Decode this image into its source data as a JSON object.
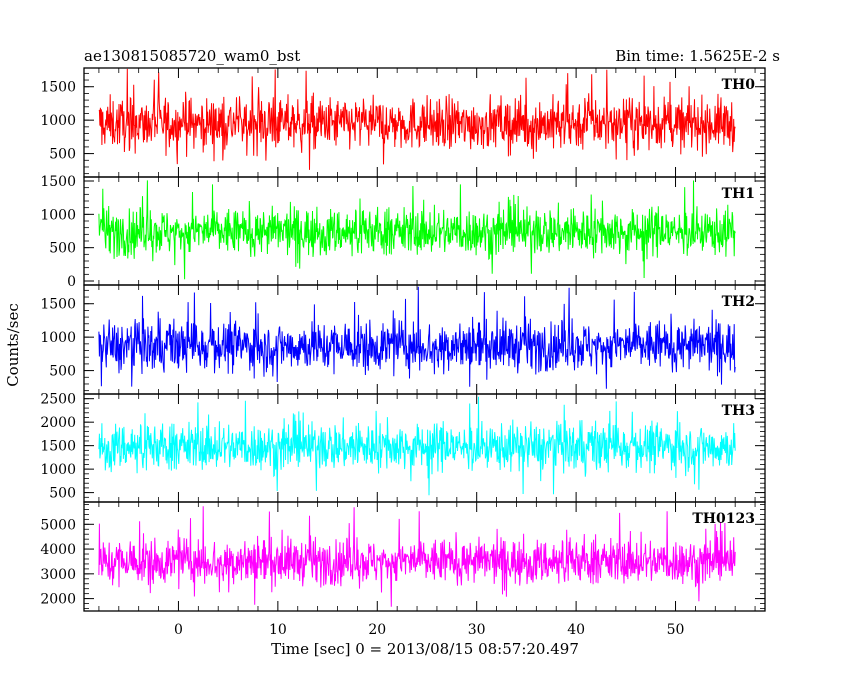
{
  "header": {
    "title_left": "ae130815085720_wam0_bst",
    "title_right": "Bin time: 1.5625E-2 s"
  },
  "chart_data": {
    "type": "line",
    "xlabel": "Time [sec] 0 = 2013/08/15 08:57:20.497",
    "ylabel": "Counts/sec",
    "xlim": [
      -9.5,
      59
    ],
    "x_ticks": [
      0,
      10,
      20,
      30,
      40,
      50
    ],
    "x_data_range": [
      -8,
      56
    ],
    "panels": [
      {
        "label": "TH0",
        "color": "#ff0000",
        "ylim": [
          150,
          1780
        ],
        "y_ticks": [
          500,
          1000,
          1500
        ],
        "mean": 950,
        "band": [
          350,
          1500
        ],
        "spike_range": [
          180,
          1780
        ]
      },
      {
        "label": "TH1",
        "color": "#00ff00",
        "ylim": [
          -60,
          1560
        ],
        "y_ticks": [
          0,
          500,
          1000,
          1500
        ],
        "mean": 740,
        "band": [
          200,
          1250
        ],
        "spike_range": [
          0,
          1550
        ]
      },
      {
        "label": "TH2",
        "color": "#0000ff",
        "ylim": [
          150,
          1780
        ],
        "y_ticks": [
          500,
          1000,
          1500
        ],
        "mean": 870,
        "band": [
          300,
          1400
        ],
        "spike_range": [
          200,
          1780
        ]
      },
      {
        "label": "TH3",
        "color": "#00ffff",
        "ylim": [
          300,
          2600
        ],
        "y_ticks": [
          500,
          1000,
          1500,
          2000,
          2500
        ],
        "mean": 1480,
        "band": [
          700,
          2200
        ],
        "spike_range": [
          380,
          2600
        ]
      },
      {
        "label": "TH0123",
        "color": "#ff00ff",
        "ylim": [
          1500,
          5900
        ],
        "y_ticks": [
          2000,
          3000,
          4000,
          5000
        ],
        "mean": 3500,
        "band": [
          2200,
          4900
        ],
        "spike_range": [
          1600,
          5800
        ]
      }
    ]
  }
}
